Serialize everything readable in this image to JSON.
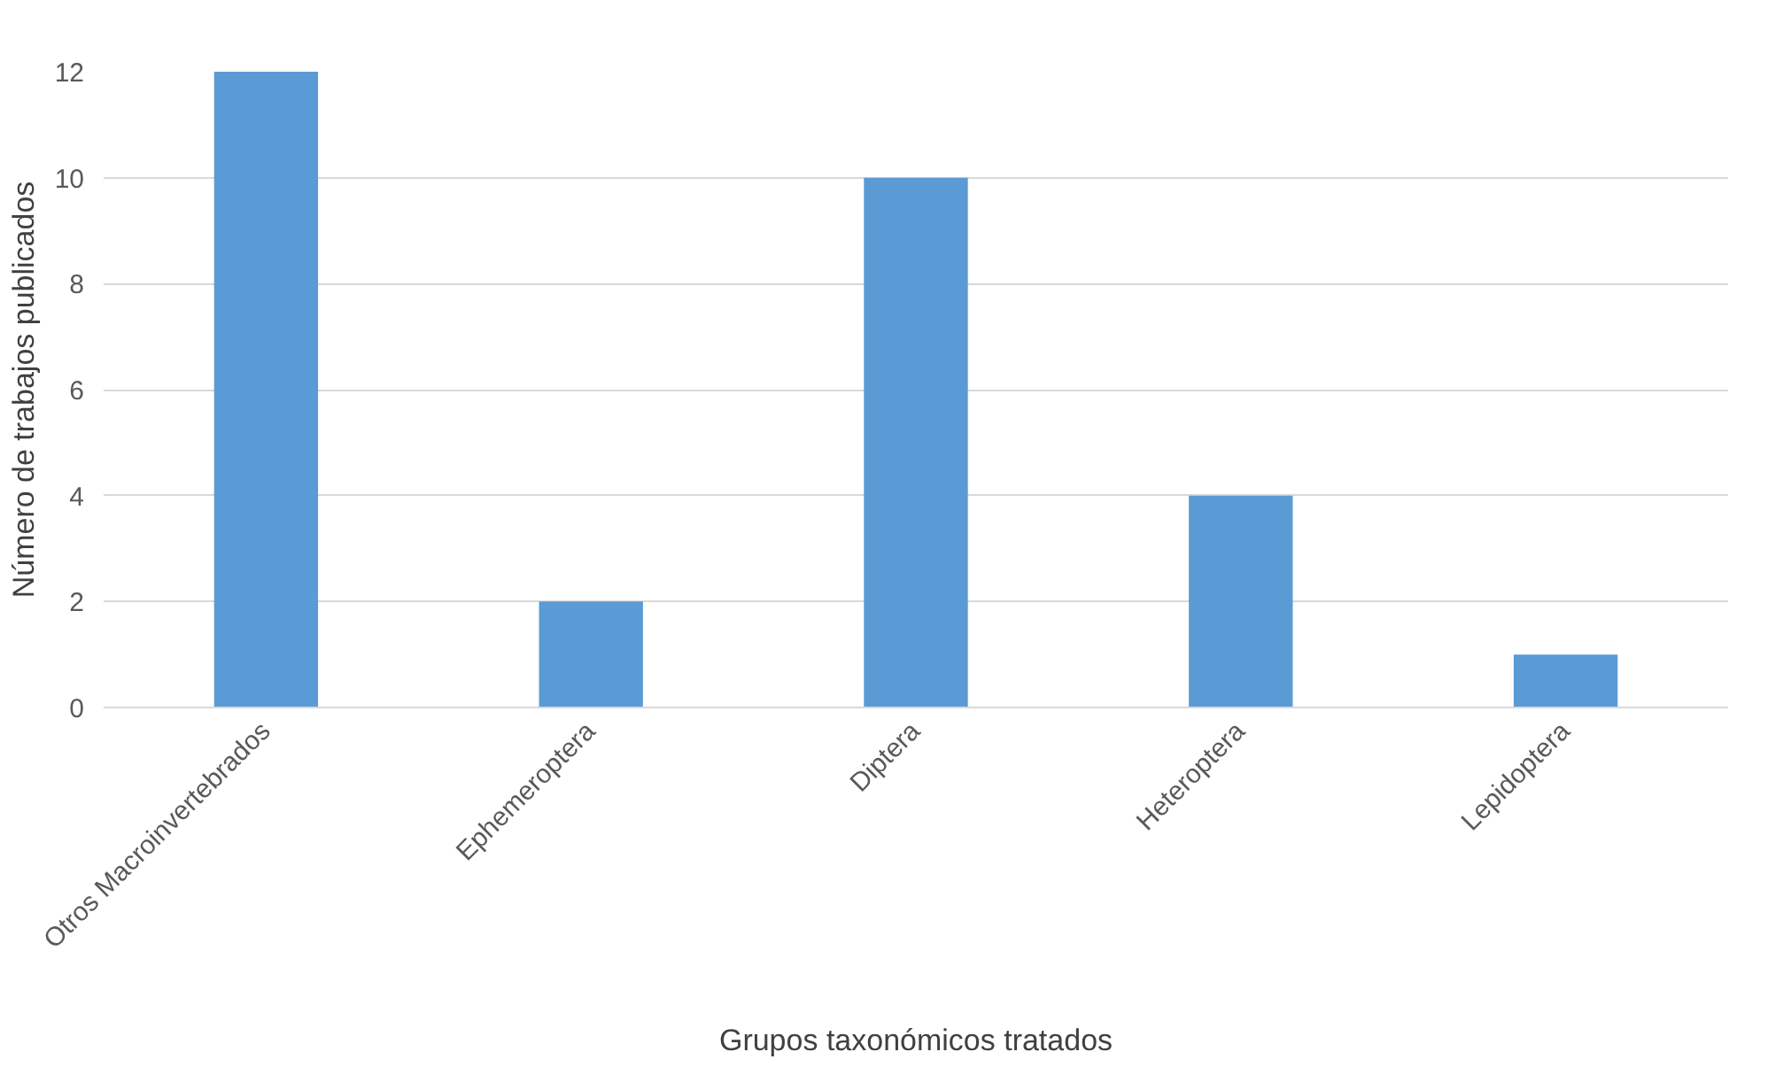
{
  "chart_data": {
    "type": "bar",
    "xlabel": "Grupos taxonómicos tratados",
    "ylabel": "Número de trabajos publicados",
    "categories": [
      "Otros Macroinvertebrados",
      "Ephemeroptera",
      "Diptera",
      "Heteroptera",
      "Lepidoptera"
    ],
    "values": [
      12,
      2,
      10,
      4,
      1
    ],
    "color": "#5b9bd5",
    "ylim": [
      0,
      12
    ],
    "yticks": [
      0,
      2,
      4,
      6,
      8,
      10,
      12
    ],
    "grid": "y"
  }
}
